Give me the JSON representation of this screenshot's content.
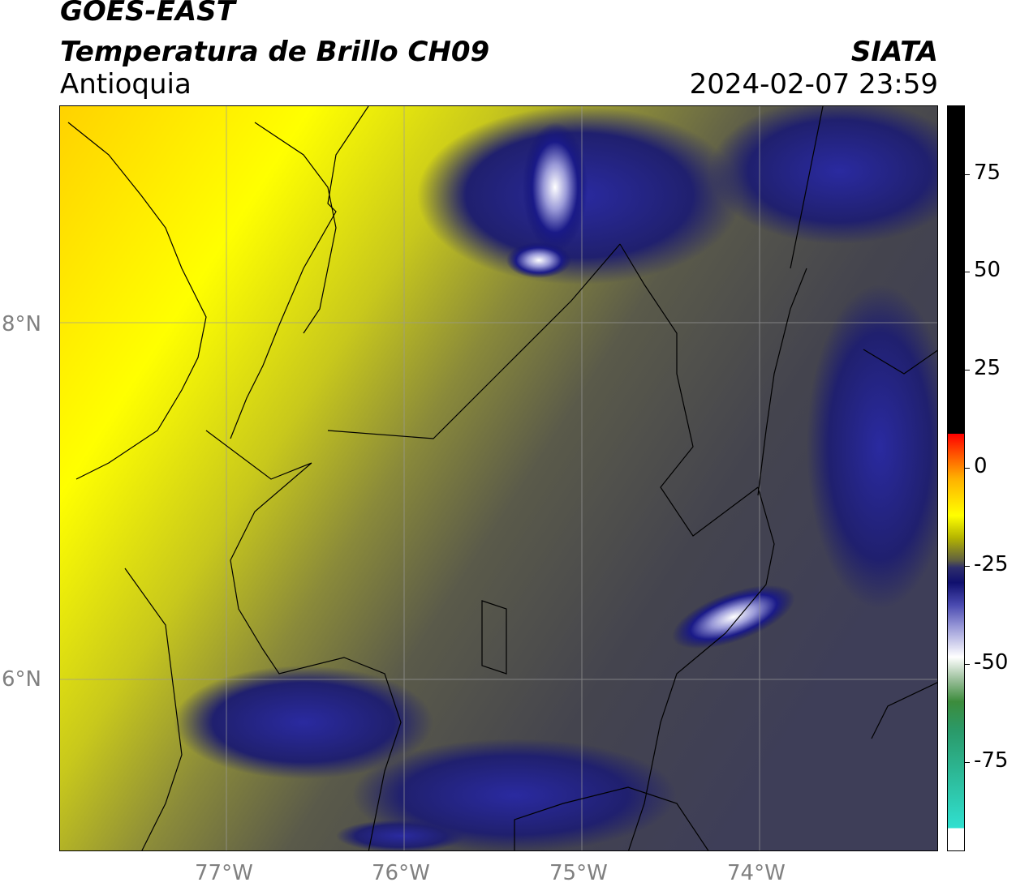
{
  "header": {
    "satellite": "GOES-EAST",
    "product": "Temperatura de Brillo CH09",
    "region": "Antioquia",
    "agency": "SIATA",
    "timestamp": "2024-02-07 23:59"
  },
  "axes": {
    "lat_labels": [
      "8°N",
      "6°N"
    ],
    "lon_labels": [
      "77°W",
      "76°W",
      "75°W",
      "74°W"
    ]
  },
  "colorbar": {
    "ticks": [
      "75",
      "50",
      "25",
      "0",
      "-25",
      "-50",
      "-75"
    ],
    "colors": {
      "warm": "#ffff00",
      "neutral": "#4a4a4a",
      "cold": "#10106e",
      "very_cold": "#ffffff",
      "black_band": "#000000"
    }
  }
}
